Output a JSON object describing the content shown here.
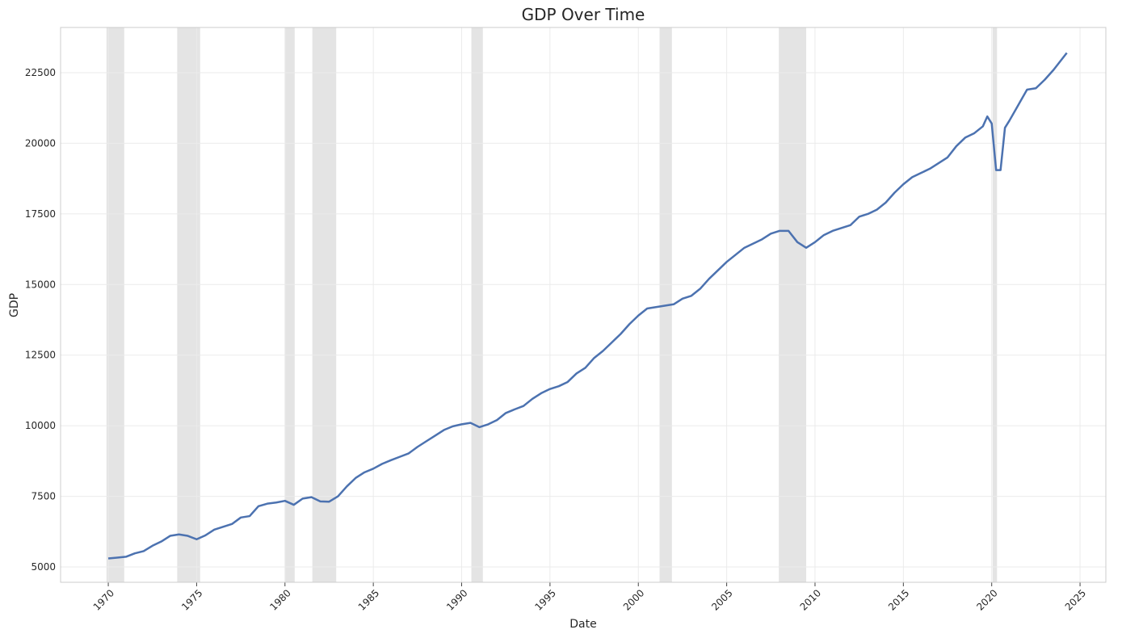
{
  "chart_data": {
    "type": "line",
    "title": "GDP Over Time",
    "x_label": "Date",
    "y_label": "GDP",
    "x": [
      1970.0,
      1970.5,
      1971.0,
      1971.5,
      1972.0,
      1972.5,
      1973.0,
      1973.5,
      1974.0,
      1974.5,
      1975.0,
      1975.5,
      1976.0,
      1976.5,
      1977.0,
      1977.5,
      1978.0,
      1978.5,
      1979.0,
      1979.5,
      1980.0,
      1980.5,
      1981.0,
      1981.5,
      1982.0,
      1982.5,
      1983.0,
      1983.5,
      1984.0,
      1984.5,
      1985.0,
      1985.5,
      1986.0,
      1986.5,
      1987.0,
      1987.5,
      1988.0,
      1988.5,
      1989.0,
      1989.5,
      1990.0,
      1990.5,
      1991.0,
      1991.5,
      1992.0,
      1992.5,
      1993.0,
      1993.5,
      1994.0,
      1994.5,
      1995.0,
      1995.5,
      1996.0,
      1996.5,
      1997.0,
      1997.5,
      1998.0,
      1998.5,
      1999.0,
      1999.5,
      2000.0,
      2000.5,
      2001.0,
      2001.5,
      2002.0,
      2002.5,
      2003.0,
      2003.5,
      2004.0,
      2004.5,
      2005.0,
      2005.5,
      2006.0,
      2006.5,
      2007.0,
      2007.5,
      2008.0,
      2008.5,
      2009.0,
      2009.5,
      2010.0,
      2010.5,
      2011.0,
      2011.5,
      2012.0,
      2012.5,
      2013.0,
      2013.5,
      2014.0,
      2014.5,
      2015.0,
      2015.5,
      2016.0,
      2016.5,
      2017.0,
      2017.5,
      2018.0,
      2018.5,
      2019.0,
      2019.5,
      2019.75,
      2020.0,
      2020.25,
      2020.5,
      2020.75,
      2021.0,
      2021.5,
      2022.0,
      2022.5,
      2023.0,
      2023.5,
      2024.0,
      2024.25
    ],
    "series": [
      {
        "name": "GDP",
        "color": "#4c72b0",
        "values": [
          5300,
          5330,
          5360,
          5480,
          5560,
          5750,
          5900,
          6100,
          6150,
          6100,
          5980,
          6120,
          6320,
          6420,
          6520,
          6750,
          6800,
          7150,
          7240,
          7280,
          7340,
          7200,
          7420,
          7470,
          7320,
          7310,
          7500,
          7850,
          8150,
          8350,
          8480,
          8650,
          8780,
          8900,
          9020,
          9250,
          9450,
          9650,
          9850,
          9980,
          10050,
          10100,
          9950,
          10050,
          10200,
          10450,
          10580,
          10700,
          10950,
          11150,
          11300,
          11400,
          11550,
          11850,
          12050,
          12400,
          12650,
          12950,
          13250,
          13600,
          13900,
          14150,
          14200,
          14250,
          14300,
          14500,
          14600,
          14850,
          15200,
          15500,
          15800,
          16050,
          16300,
          16450,
          16600,
          16800,
          16900,
          16900,
          16500,
          16300,
          16500,
          16750,
          16900,
          17000,
          17100,
          17400,
          17500,
          17650,
          17900,
          18250,
          18550,
          18800,
          18950,
          19100,
          19300,
          19500,
          19900,
          20200,
          20350,
          20600,
          20950,
          20700,
          19050,
          19050,
          20550,
          20800,
          21350,
          21900,
          21950,
          22250,
          22600,
          23000,
          23200
        ]
      }
    ],
    "shaded_periods": [
      [
        1969.9,
        1970.9
      ],
      [
        1973.9,
        1975.2
      ],
      [
        1980.0,
        1980.55
      ],
      [
        1981.55,
        1982.9
      ],
      [
        1990.55,
        1991.2
      ],
      [
        2001.2,
        2001.9
      ],
      [
        2007.95,
        2009.5
      ],
      [
        2020.05,
        2020.3
      ]
    ],
    "shade_color": "#d5d5d5",
    "xlim": [
      1967.3,
      2026.46
    ],
    "xticks": [
      1970,
      1975,
      1980,
      1985,
      1990,
      1995,
      2000,
      2005,
      2010,
      2015,
      2020,
      2025
    ],
    "ylim": [
      4457,
      24101
    ],
    "yticks": [
      5000,
      7500,
      10000,
      12500,
      15000,
      17500,
      20000,
      22500
    ],
    "grid": true
  }
}
